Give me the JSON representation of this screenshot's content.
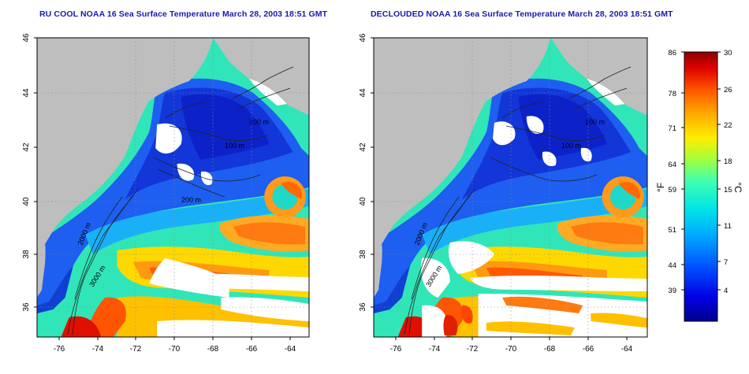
{
  "panels": [
    {
      "id": "left",
      "title": "RU COOL NOAA 16 Sea Surface Temperature March 28, 2003 18:51 GMT",
      "contour_labels": [
        "100 m",
        "100 m",
        "200 m",
        "2000 m",
        "3000 m"
      ]
    },
    {
      "id": "right",
      "title": "DECLOUDED NOAA 16 Sea Surface Temperature March 28, 2003 18:51 GMT",
      "contour_labels": [
        "100 m",
        "100 m",
        "2000 m",
        "3000 m"
      ]
    }
  ],
  "axes": {
    "x_ticks": [
      "-76",
      "-74",
      "-72",
      "-70",
      "-68",
      "-66",
      "-64"
    ],
    "y_ticks": [
      "36",
      "38",
      "40",
      "42",
      "44",
      "46"
    ]
  },
  "colorbar": {
    "unit_left": "°F",
    "unit_right": "°C",
    "fahrenheit_ticks": [
      "86",
      "78",
      "71",
      "64",
      "59",
      "51",
      "44",
      "39"
    ],
    "celsius_ticks": [
      "30",
      "26",
      "22",
      "18",
      "15",
      "11",
      "7",
      "4"
    ],
    "colors": [
      "#00008c",
      "#0000e6",
      "#0050ff",
      "#00aaff",
      "#00e6e6",
      "#40ffb0",
      "#a0ff40",
      "#ffee00",
      "#ffaa00",
      "#ff5500",
      "#e00000",
      "#8c0000"
    ]
  },
  "colors": {
    "land": "#bebebe",
    "cloud": "#ffffff",
    "title": "#1a1aa8"
  }
}
